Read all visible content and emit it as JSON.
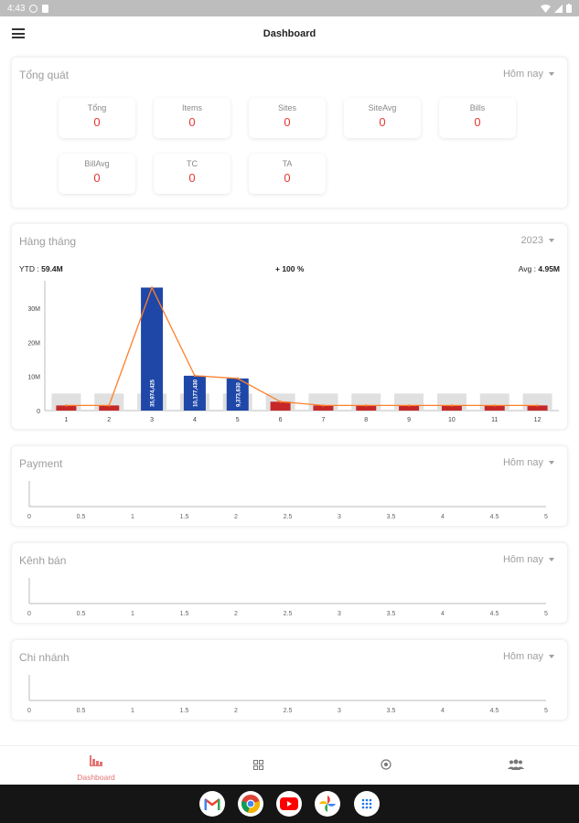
{
  "status_bar": {
    "time": "4:43"
  },
  "app_bar": {
    "title": "Dashboard"
  },
  "overview": {
    "title": "Tổng quát",
    "filter": "Hôm nay",
    "stats": [
      {
        "label": "Tổng",
        "value": "0"
      },
      {
        "label": "Items",
        "value": "0"
      },
      {
        "label": "Sites",
        "value": "0"
      },
      {
        "label": "SiteAvg",
        "value": "0"
      },
      {
        "label": "Bills",
        "value": "0"
      },
      {
        "label": "BillAvg",
        "value": "0"
      },
      {
        "label": "TC",
        "value": "0"
      },
      {
        "label": "TA",
        "value": "0"
      }
    ]
  },
  "monthly": {
    "title": "Hàng tháng",
    "year": "2023",
    "ytd_label": "YTD :",
    "ytd_value": "59.4M",
    "change": "+ 100 %",
    "avg_label": "Avg :",
    "avg_value": "4.95M"
  },
  "payment": {
    "title": "Payment",
    "filter": "Hôm nay"
  },
  "channel": {
    "title": "Kênh bán",
    "filter": "Hôm nay"
  },
  "branch": {
    "title": "Chi nhánh",
    "filter": "Hôm nay"
  },
  "bottom_nav": {
    "dashboard_label": "Dashboard"
  },
  "colors": {
    "accent": "#e57373",
    "red": "#c62828",
    "blue": "#1e47a8",
    "line": "#ff7f2a",
    "grey_bar": "#e0e0e0"
  },
  "chart_data": [
    {
      "type": "bar",
      "categories": [
        "1",
        "2",
        "3",
        "4",
        "5",
        "6",
        "7",
        "8",
        "9",
        "10",
        "11",
        "12"
      ],
      "series": [
        {
          "values": [
            1.5,
            1.5,
            36.0,
            10.2,
            9.4,
            2.6,
            1.5,
            1.5,
            1.5,
            1.5,
            1.5,
            1.5
          ]
        }
      ],
      "bar_labels": [
        "",
        "",
        "35,974,425",
        "10,177,430",
        "9,373,630",
        "",
        "",
        "",
        "",
        "",
        "",
        ""
      ],
      "line_values": [
        1.5,
        1.5,
        36.0,
        10.2,
        9.4,
        2.6,
        1.5,
        1.5,
        1.5,
        1.5,
        1.5,
        1.5
      ],
      "background_values": [
        5,
        5,
        5,
        5,
        5,
        5,
        5,
        5,
        5,
        5,
        5,
        5
      ],
      "yticks": [
        "0",
        "10M",
        "20M",
        "30M"
      ],
      "ylim": [
        0,
        38
      ]
    },
    {
      "type": "line",
      "x_ticks": [
        "0",
        "0.5",
        "1",
        "1.5",
        "2",
        "2.5",
        "3",
        "3.5",
        "4",
        "4.5",
        "5"
      ],
      "series": []
    },
    {
      "type": "line",
      "x_ticks": [
        "0",
        "0.5",
        "1",
        "1.5",
        "2",
        "2.5",
        "3",
        "3.5",
        "4",
        "4.5",
        "5"
      ],
      "series": []
    },
    {
      "type": "line",
      "x_ticks": [
        "0",
        "0.5",
        "1",
        "1.5",
        "2",
        "2.5",
        "3",
        "3.5",
        "4",
        "4.5",
        "5"
      ],
      "series": []
    }
  ]
}
